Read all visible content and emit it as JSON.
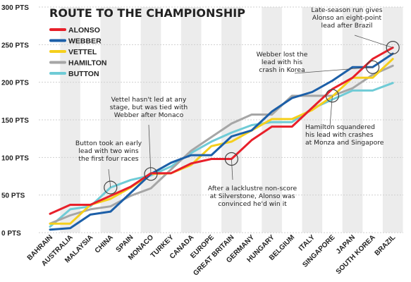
{
  "chart_data": {
    "type": "line",
    "title": "ROUTE TO THE CHAMPIONSHIP",
    "ylim": [
      0,
      300
    ],
    "yticks": [
      0,
      50,
      100,
      150,
      200,
      250,
      300
    ],
    "ytick_labels": [
      "0 PTS",
      "50 PTS",
      "100 PTS",
      "150 PTS",
      "200 PTS",
      "250 PTS",
      "300 PTS"
    ],
    "categories": [
      "BAHRAIN",
      "AUSTRALIA",
      "MALAYSIA",
      "CHINA",
      "SPAIN",
      "MONACO",
      "TURKEY",
      "CANADA",
      "EUROPE",
      "GREAT BRITAIN",
      "GERMANY",
      "HUNGARY",
      "BELGIUM",
      "ITALY",
      "SINGAPORE",
      "JAPAN",
      "SOUTH KOREA",
      "BRAZIL"
    ],
    "grid": "alternating vertical bands",
    "legend_position": "top-left",
    "series": [
      {
        "name": "ALONSO",
        "color": "#e8202a",
        "values": [
          25,
          37,
          37,
          49,
          61,
          79,
          79,
          92,
          98,
          98,
          123,
          141,
          141,
          166,
          191,
          206,
          231,
          246
        ]
      },
      {
        "name": "WEBBER",
        "color": "#1c5fa8",
        "values": [
          4,
          6,
          24,
          28,
          53,
          78,
          93,
          103,
          103,
          128,
          136,
          161,
          179,
          187,
          202,
          220,
          220,
          238
        ]
      },
      {
        "name": "VETTEL",
        "color": "#f5cf1c",
        "values": [
          12,
          12,
          37,
          45,
          60,
          78,
          79,
          90,
          115,
          121,
          136,
          151,
          151,
          163,
          181,
          206,
          206,
          231
        ]
      },
      {
        "name": "HAMILTON",
        "color": "#a6a6a6",
        "values": [
          12,
          23,
          31,
          35,
          49,
          59,
          84,
          109,
          127,
          145,
          157,
          157,
          182,
          182,
          182,
          192,
          210,
          222
        ]
      },
      {
        "name": "BUTTON",
        "color": "#6fcbd6",
        "values": [
          8,
          31,
          35,
          60,
          70,
          76,
          88,
          106,
          121,
          133,
          143,
          147,
          147,
          165,
          177,
          189,
          189,
          199
        ]
      }
    ],
    "annotations": [
      {
        "text": [
          "Button took an early",
          "lead with two wins",
          "the first four races"
        ],
        "circle_at": {
          "category": "CHINA",
          "value": 60
        }
      },
      {
        "text": [
          "Vettel hasn't led at any",
          "stage, but was tied with",
          "Webber after Monaco"
        ],
        "circle_at": {
          "category": "MONACO",
          "value": 78
        }
      },
      {
        "text": [
          "After a lacklustre non-score",
          "at Silverstone, Alonso was",
          "convinced he'd win it"
        ],
        "circle_at": {
          "category": "GREAT BRITAIN",
          "value": 98
        }
      },
      {
        "text": [
          "Hamilton squandered",
          "his lead with crashes",
          "at Monza and Singapore"
        ],
        "circle_at": {
          "category": "SINGAPORE",
          "value": 182
        }
      },
      {
        "text": [
          "Webber lost the",
          "lead with his",
          "crash in Korea"
        ],
        "circle_at": {
          "category": "SOUTH KOREA",
          "value": 220
        }
      },
      {
        "text": [
          "Late-season run gives",
          "Alonso an eight-point",
          "lead after Brazil"
        ],
        "circle_at": {
          "category": "BRAZIL",
          "value": 246
        }
      }
    ]
  }
}
